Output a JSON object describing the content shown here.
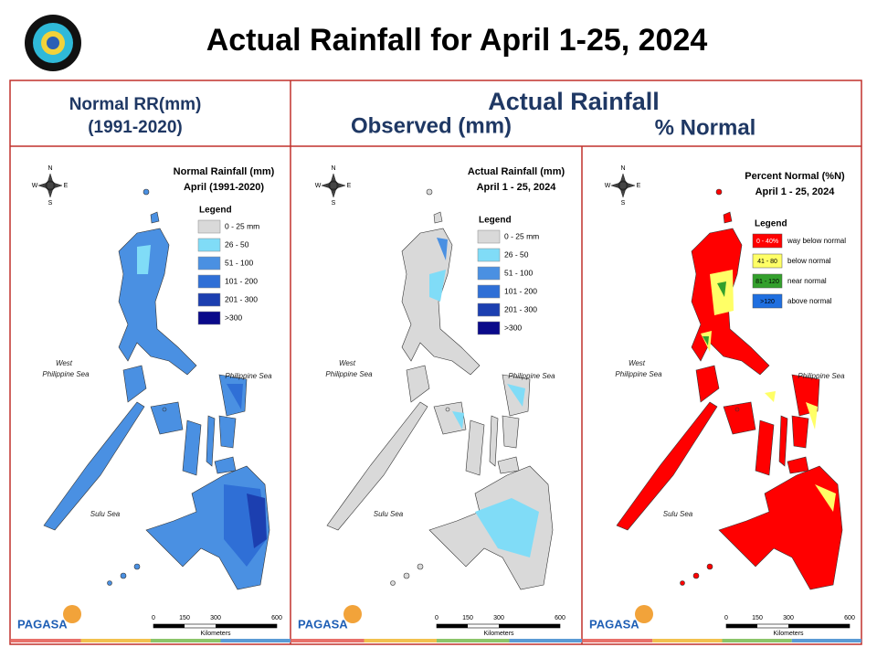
{
  "title": "Actual Rainfall for April 1-25, 2024",
  "header": {
    "normal": [
      "Normal RR(mm)",
      "(1991-2020)"
    ],
    "actual": "Actual Rainfall",
    "observed": "Observed (mm)",
    "percent": "% Normal"
  },
  "panels": [
    {
      "title": [
        "Normal Rainfall (mm)",
        "April (1991-2020)"
      ],
      "legend_title": "Legend",
      "legend": [
        {
          "label": "0 - 25 mm",
          "color": "#d9d9d9"
        },
        {
          "label": "26 - 50",
          "color": "#80dcf7"
        },
        {
          "label": "51 - 100",
          "color": "#4a90e2"
        },
        {
          "label": "101 - 200",
          "color": "#2f6fd6"
        },
        {
          "label": "201 - 300",
          "color": "#1c3fb0"
        },
        {
          "label": ">300",
          "color": "#0a0a8a"
        }
      ],
      "seas": [
        "West",
        "Philippine Sea",
        "Philippine Sea",
        "Sulu Sea"
      ],
      "compass": [
        "N",
        "E",
        "S",
        "W"
      ],
      "scale": [
        "0",
        "150",
        "300",
        "600",
        "Kilometers"
      ],
      "logo": "PAGASA"
    },
    {
      "title": [
        "Actual Rainfall (mm)",
        "April 1 - 25, 2024"
      ],
      "legend_title": "Legend",
      "legend": [
        {
          "label": "0 - 25 mm",
          "color": "#d9d9d9"
        },
        {
          "label": "26 - 50",
          "color": "#80dcf7"
        },
        {
          "label": "51 - 100",
          "color": "#4a90e2"
        },
        {
          "label": "101 - 200",
          "color": "#2f6fd6"
        },
        {
          "label": "201 - 300",
          "color": "#1c3fb0"
        },
        {
          "label": ">300",
          "color": "#0a0a8a"
        }
      ],
      "seas": [
        "West",
        "Philippine Sea",
        "Philippine Sea",
        "Sulu Sea"
      ],
      "compass": [
        "N",
        "E",
        "S",
        "W"
      ],
      "scale": [
        "0",
        "150",
        "300",
        "600",
        "Kilometers"
      ],
      "logo": "PAGASA"
    },
    {
      "title": [
        "Percent Normal (%N)",
        "April 1 - 25, 2024"
      ],
      "legend_title": "Legend",
      "legend": [
        {
          "label": "0 - 40%",
          "text": "way below normal",
          "color": "#ff0000"
        },
        {
          "label": "41 - 80",
          "text": "below normal",
          "color": "#ffff66"
        },
        {
          "label": "81 - 120",
          "text": "near normal",
          "color": "#33a02c"
        },
        {
          "label": ">120",
          "text": "above normal",
          "color": "#1f6fe0"
        }
      ],
      "seas": [
        "West",
        "Philippine Sea",
        "Philippine Sea",
        "Sulu Sea"
      ],
      "compass": [
        "N",
        "E",
        "S",
        "W"
      ],
      "scale": [
        "0",
        "150",
        "300",
        "600",
        "Kilometers"
      ],
      "logo": "PAGASA"
    }
  ]
}
